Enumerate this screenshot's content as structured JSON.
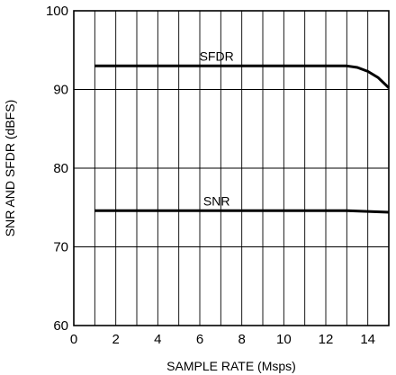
{
  "chart_data": {
    "type": "line",
    "title": "",
    "xlabel": "SAMPLE RATE (Msps)",
    "ylabel": "SNR AND SFDR (dBFS)",
    "xlim": [
      0,
      15
    ],
    "ylim": [
      60,
      100
    ],
    "grid": true,
    "x_ticks": [
      0,
      2,
      4,
      6,
      8,
      10,
      12,
      14
    ],
    "y_ticks": [
      60,
      70,
      80,
      90,
      100
    ],
    "y_tick_labels": [
      "60",
      "70",
      "80",
      "90",
      "100"
    ],
    "series": [
      {
        "name": "SFDR",
        "label_at": [
          6.8,
          93
        ],
        "x": [
          1,
          2,
          4,
          6,
          8,
          10,
          12,
          13,
          13.5,
          14,
          14.5,
          15
        ],
        "y": [
          93,
          93,
          93,
          93,
          93,
          93,
          93,
          93,
          92.8,
          92.3,
          91.5,
          90.2
        ]
      },
      {
        "name": "SNR",
        "label_at": [
          6.8,
          74.6
        ],
        "x": [
          1,
          2,
          4,
          6,
          8,
          10,
          12,
          13,
          14,
          15
        ],
        "y": [
          74.6,
          74.6,
          74.6,
          74.6,
          74.6,
          74.6,
          74.6,
          74.6,
          74.5,
          74.4
        ]
      }
    ]
  }
}
